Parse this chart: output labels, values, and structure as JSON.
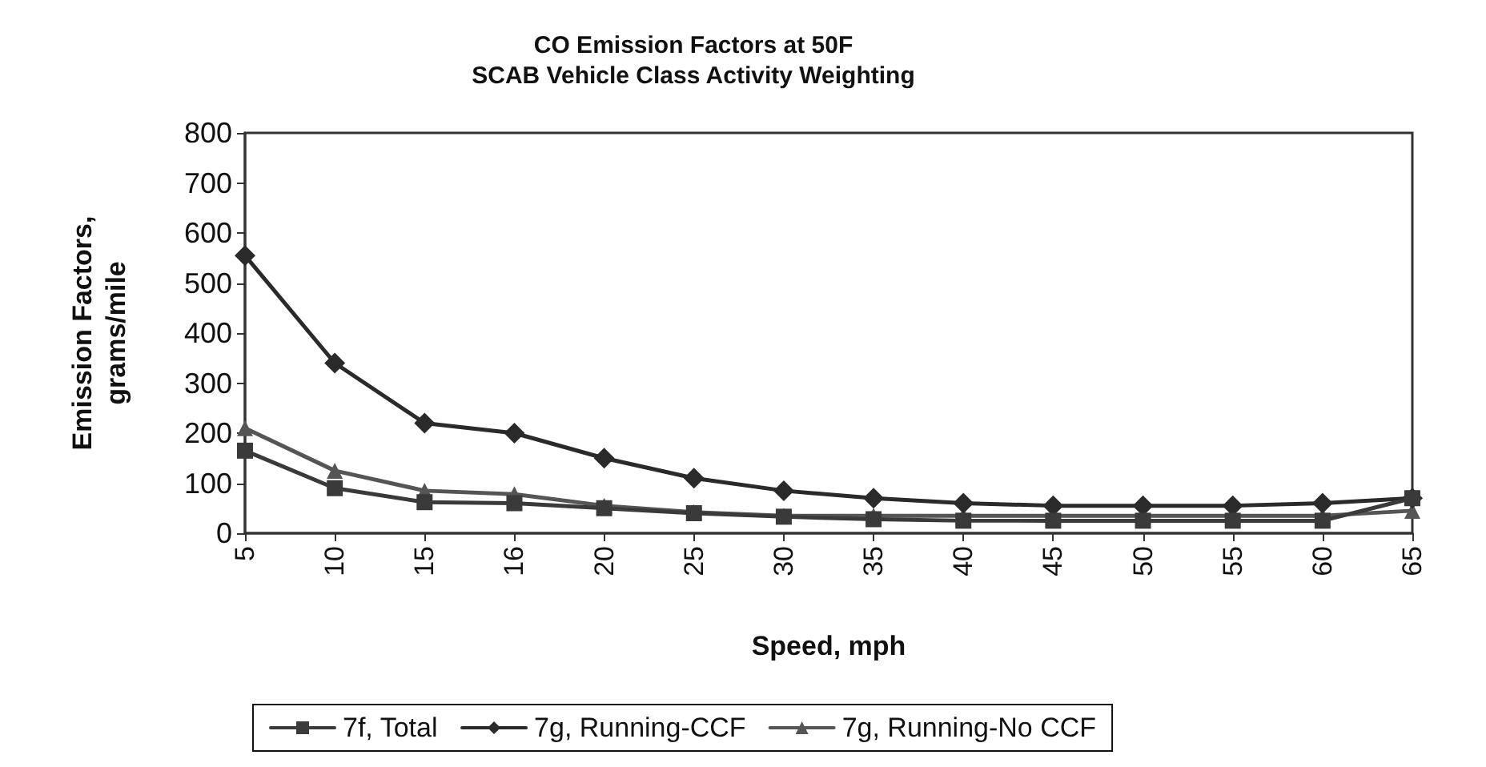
{
  "chart_data": {
    "type": "line",
    "title": "CO Emission Factors at 50F\nSCAB Vehicle Class Activity Weighting",
    "xlabel": "Speed, mph",
    "ylabel": "Emission Factors,\ngrams/mile",
    "categories": [
      "5",
      "10",
      "15",
      "16",
      "20",
      "25",
      "30",
      "35",
      "40",
      "45",
      "50",
      "55",
      "60",
      "65"
    ],
    "series": [
      {
        "name": "7f, Total",
        "color": "#3a3a3a",
        "marker": "square",
        "values": [
          165,
          90,
          62,
          60,
          50,
          40,
          33,
          28,
          25,
          25,
          25,
          25,
          25,
          70
        ]
      },
      {
        "name": "7g, Running-CCF",
        "color": "#2a2a2a",
        "marker": "diamond",
        "values": [
          555,
          340,
          220,
          200,
          150,
          110,
          85,
          70,
          60,
          55,
          55,
          55,
          60,
          70
        ]
      },
      {
        "name": "7g, Running-No CCF",
        "color": "#555555",
        "marker": "triangle",
        "values": [
          210,
          125,
          85,
          78,
          55,
          42,
          35,
          35,
          35,
          35,
          35,
          35,
          35,
          45
        ]
      }
    ],
    "ylim": [
      0,
      800
    ],
    "yticks": [
      0,
      100,
      200,
      300,
      400,
      500,
      600,
      700,
      800
    ],
    "grid": false,
    "legend": "bottom",
    "line_style": "solid"
  }
}
